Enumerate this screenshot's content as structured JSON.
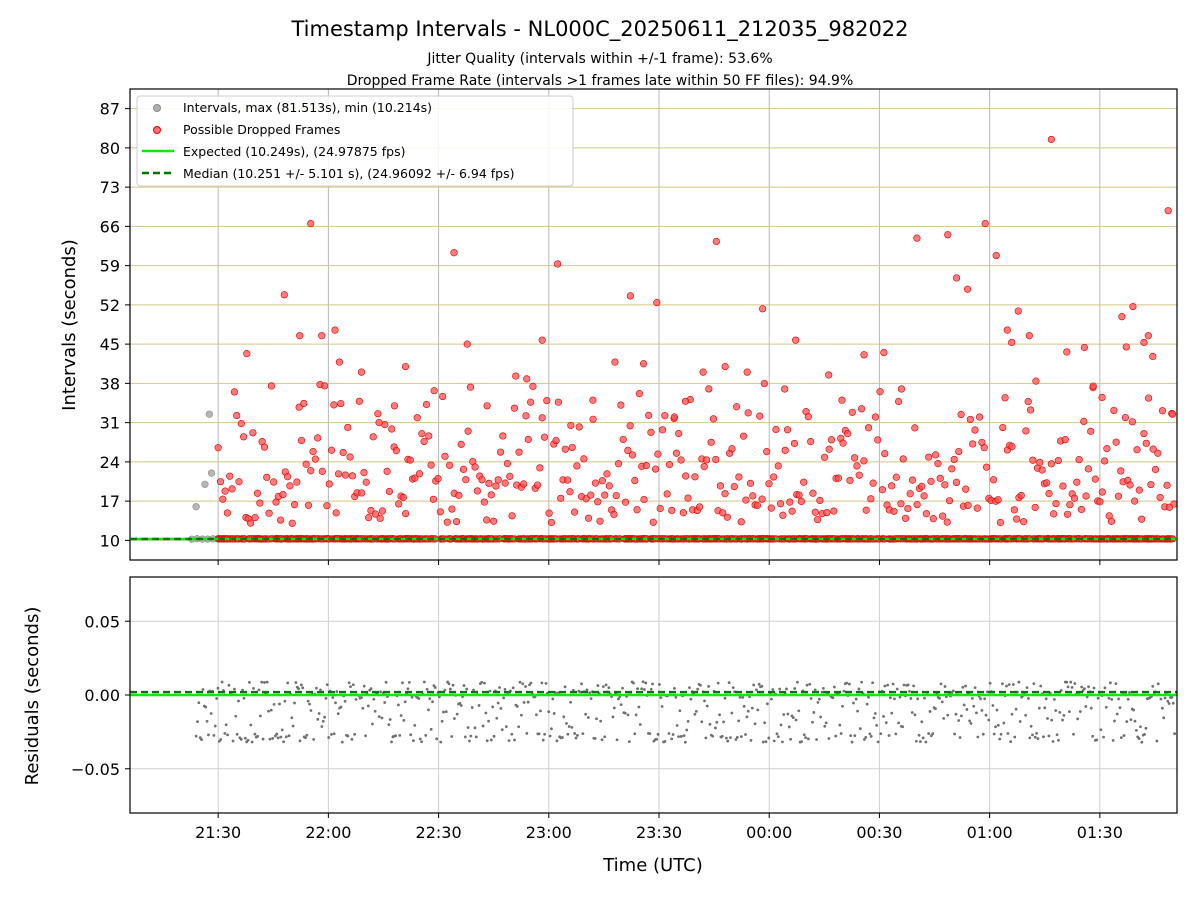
{
  "figure": {
    "title": "Timestamp Intervals - NL000C_20250611_212035_982022",
    "subtitle_1": "Jitter Quality (intervals within +/-1 frame): 53.6%",
    "subtitle_2": "Dropped Frame Rate (intervals >1 frames late within 50 FF files): 94.9%"
  },
  "chart_data": [
    {
      "type": "scatter",
      "ylabel": "Intervals (seconds)",
      "xlabel": "",
      "y_ticks": [
        10,
        17,
        24,
        31,
        38,
        45,
        52,
        59,
        66,
        73,
        80,
        87
      ],
      "ylim": [
        6.5,
        90.5
      ],
      "x_range_hours": [
        21.1,
        25.85
      ],
      "x_tick_hours": [
        21.5,
        22.0,
        22.5,
        23.0,
        23.5,
        24.0,
        24.5,
        25.0,
        25.5
      ],
      "grid": "x major gridlines; horizontal reference lines at y ticks",
      "legend_position": "upper-left",
      "legend": [
        "Intervals, max (81.513s), min (10.214s)",
        "Possible Dropped Frames",
        "Expected (10.249s), (24.97875 fps)",
        "Median (10.251 +/- 5.101 s), (24.96092 +/- 6.94 fps)"
      ],
      "colors": {
        "intervals": "#9e9e9e",
        "dropped": "#ff2a2a",
        "expected": "#00ee00",
        "median": "#007700",
        "hline": "#d4c48a"
      },
      "expected": 10.249,
      "median": 10.251,
      "series": [
        {
          "name": "Intervals, max (81.513s), min (10.214s)",
          "points": [
            [
              21.4,
              16.0
            ],
            [
              21.44,
              20.0
            ],
            [
              21.46,
              32.5
            ],
            [
              21.47,
              22.0
            ]
          ]
        },
        {
          "name": "Possible Dropped Frames",
          "points": [
            [
              21.63,
              43.3
            ],
            [
              21.8,
              53.8
            ],
            [
              21.92,
              66.5
            ],
            [
              21.87,
              46.5
            ],
            [
              21.97,
              46.5
            ],
            [
              22.03,
              47.5
            ],
            [
              22.05,
              41.8
            ],
            [
              22.15,
              40.0
            ],
            [
              22.23,
              31.0
            ],
            [
              22.3,
              34.0
            ],
            [
              22.35,
              41.0
            ],
            [
              22.48,
              36.7
            ],
            [
              22.57,
              61.3
            ],
            [
              22.63,
              45.0
            ],
            [
              22.72,
              34.0
            ],
            [
              22.85,
              39.3
            ],
            [
              22.9,
              38.8
            ],
            [
              22.97,
              45.7
            ],
            [
              23.04,
              59.3
            ],
            [
              23.1,
              30.5
            ],
            [
              23.2,
              35.0
            ],
            [
              23.3,
              41.8
            ],
            [
              23.37,
              53.6
            ],
            [
              23.43,
              41.5
            ],
            [
              23.49,
              52.4
            ],
            [
              23.57,
              32.0
            ],
            [
              23.62,
              34.8
            ],
            [
              23.7,
              40.0
            ],
            [
              23.76,
              63.3
            ],
            [
              23.8,
              41.0
            ],
            [
              23.9,
              40.0
            ],
            [
              23.97,
              51.3
            ],
            [
              24.07,
              37.0
            ],
            [
              24.12,
              45.7
            ],
            [
              24.27,
              39.5
            ],
            [
              24.33,
              35.0
            ],
            [
              24.43,
              43.1
            ],
            [
              24.52,
              43.5
            ],
            [
              24.6,
              37.0
            ],
            [
              24.67,
              63.9
            ],
            [
              24.81,
              64.5
            ],
            [
              24.85,
              56.8
            ],
            [
              24.9,
              54.8
            ],
            [
              24.98,
              66.5
            ],
            [
              25.03,
              60.8
            ],
            [
              25.08,
              47.5
            ],
            [
              25.1,
              45.3
            ],
            [
              25.13,
              50.9
            ],
            [
              25.18,
              46.5
            ],
            [
              25.21,
              38.4
            ],
            [
              25.28,
              81.5
            ],
            [
              25.35,
              43.6
            ],
            [
              25.43,
              44.4
            ],
            [
              25.47,
              37.5
            ],
            [
              25.51,
              35.5
            ],
            [
              25.6,
              49.9
            ],
            [
              25.62,
              44.5
            ],
            [
              25.65,
              51.7
            ],
            [
              25.7,
              45.3
            ],
            [
              25.72,
              46.5
            ],
            [
              25.74,
              42.8
            ],
            [
              25.81,
              68.8
            ],
            [
              25.83,
              32.5
            ]
          ]
        },
        {
          "name": "Expected (10.249s), (24.97875 fps)",
          "values": [
            10.249
          ]
        },
        {
          "name": "Median (10.251 +/- 5.101 s), (24.96092 +/- 6.94 fps)",
          "values": [
            10.251
          ]
        }
      ]
    },
    {
      "type": "scatter",
      "ylabel": "Residuals (seconds)",
      "xlabel": "Time (UTC)",
      "y_ticks": [
        0.05,
        0.0,
        -0.05
      ],
      "y_tick_labels": [
        "0.05",
        "0.00",
        "−0.05"
      ],
      "ylim": [
        -0.08,
        0.08
      ],
      "x_tick_labels": [
        "21:30",
        "22:00",
        "22:30",
        "23:00",
        "23:30",
        "00:00",
        "00:30",
        "01:00",
        "01:30"
      ],
      "grid": "both axes",
      "residual_typical_range": [
        -0.035,
        0.009
      ],
      "expected_residual": 0.0,
      "median_residual": 0.002
    }
  ]
}
